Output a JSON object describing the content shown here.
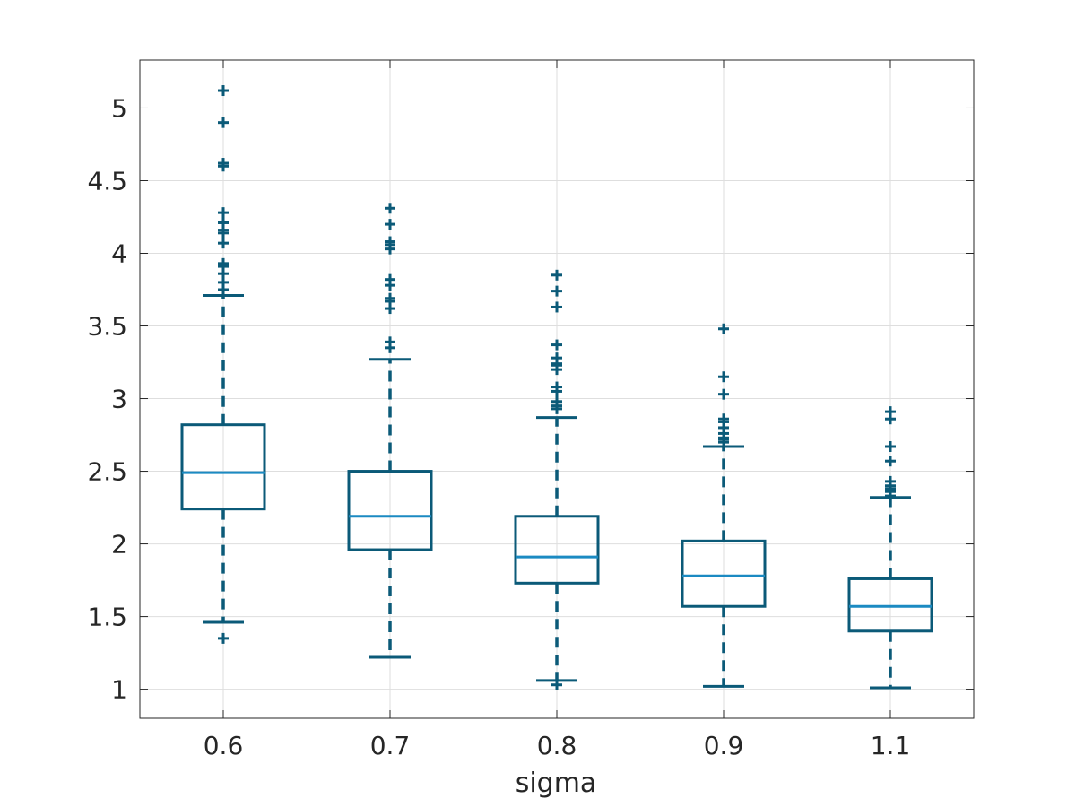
{
  "chart_data": {
    "type": "box",
    "title": "",
    "xlabel": "sigma",
    "ylabel": "",
    "ylim": [
      0.8,
      5.33
    ],
    "yticks": [
      "1",
      "1.5",
      "2",
      "2.5",
      "3",
      "3.5",
      "4",
      "4.5",
      "5"
    ],
    "ytick_values": [
      1,
      1.5,
      2,
      2.5,
      3,
      3.5,
      4,
      4.5,
      5
    ],
    "grid": true,
    "categories": [
      "0.6",
      "0.7",
      "0.8",
      "0.9",
      "1.1"
    ],
    "boxes": [
      {
        "category": "0.6",
        "lower_whisker": 1.46,
        "q1": 2.24,
        "median": 2.49,
        "q3": 2.82,
        "upper_whisker": 3.71,
        "outliers": [
          1.35,
          3.75,
          3.8,
          3.86,
          3.91,
          3.93,
          4.07,
          4.14,
          4.16,
          4.21,
          4.28,
          4.6,
          4.62,
          4.9,
          5.12
        ]
      },
      {
        "category": "0.7",
        "lower_whisker": 1.22,
        "q1": 1.96,
        "median": 2.19,
        "q3": 2.5,
        "upper_whisker": 3.27,
        "outliers": [
          3.35,
          3.39,
          3.62,
          3.67,
          3.69,
          3.78,
          3.82,
          4.03,
          4.06,
          4.08,
          4.2,
          4.31
        ]
      },
      {
        "category": "0.8",
        "lower_whisker": 1.06,
        "q1": 1.73,
        "median": 1.91,
        "q3": 2.19,
        "upper_whisker": 2.87,
        "outliers": [
          1.03,
          2.93,
          2.95,
          2.98,
          3.05,
          3.08,
          3.2,
          3.23,
          3.24,
          3.28,
          3.37,
          3.63,
          3.74,
          3.85
        ]
      },
      {
        "category": "0.9",
        "lower_whisker": 1.02,
        "q1": 1.57,
        "median": 1.78,
        "q3": 2.02,
        "upper_whisker": 2.67,
        "outliers": [
          2.7,
          2.72,
          2.73,
          2.76,
          2.8,
          2.84,
          2.86,
          3.03,
          3.15,
          3.48
        ]
      },
      {
        "category": "1.1",
        "lower_whisker": 1.01,
        "q1": 1.4,
        "median": 1.57,
        "q3": 1.76,
        "upper_whisker": 2.32,
        "outliers": [
          2.33,
          2.36,
          2.38,
          2.4,
          2.43,
          2.57,
          2.67,
          2.86,
          2.91
        ]
      }
    ],
    "colors": {
      "box": "#0b5a78",
      "median": "#1b8ac2",
      "whisker": "#0b5a78",
      "outlier": "#0b5a78",
      "grid": "#dedede",
      "axis": "#262626"
    }
  }
}
